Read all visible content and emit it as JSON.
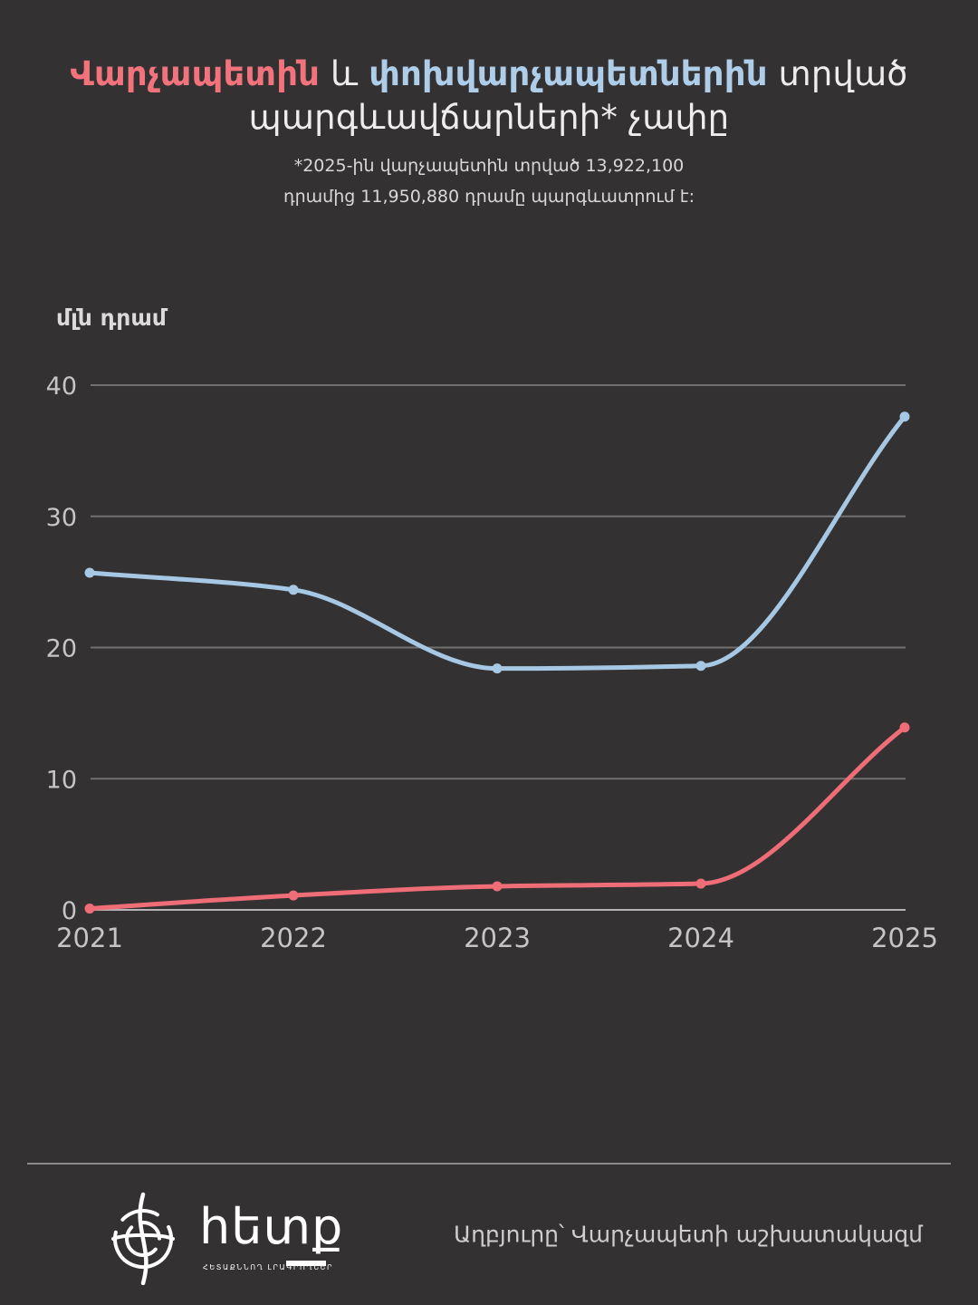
{
  "title": {
    "part_red": "Վարչապետին",
    "part_and": " և ",
    "part_blue": "փոխվարչապետներին",
    "part_tail": " տրված",
    "line2": "պարգևավճարների* չափը"
  },
  "subtitle": {
    "line1": "*2025-ին վարչապետին տրված 13,922,100",
    "line2": "դրամից 11,950,880 դրամը պարգևատրում է:"
  },
  "chart_data": {
    "type": "line",
    "title": "Վարչապետին և փոխվարչապետներին տրված պարգևավճարների չափը",
    "ylabel": "մլն դրամ",
    "xlabel": "",
    "x": [
      "2021",
      "2022",
      "2023",
      "2024",
      "2025"
    ],
    "series": [
      {
        "name": "Վարչապետին",
        "color": "#ef6d76",
        "values": [
          0.1,
          1.1,
          1.8,
          2.0,
          13.9
        ]
      },
      {
        "name": "փոխվարչապետներին",
        "color": "#a6c8e4",
        "values": [
          25.7,
          24.4,
          18.4,
          18.6,
          37.6
        ]
      }
    ],
    "ylim": [
      0,
      40
    ],
    "yticks": [
      0,
      10,
      20,
      30,
      40
    ],
    "grid": true,
    "legend_position": "none",
    "interpolation": "monotone"
  },
  "footer": {
    "logo_word": "հետք",
    "logo_tagline": "ՀԵՏԱՔՆՆՈՂ ԼՐԱԳՐՈՂՆԵՐ",
    "source": "Աղբյուրը՝ Վարչապետի աշխատակազմ"
  },
  "colors": {
    "background": "#333132",
    "pm_red": "#f2737c",
    "deputy_blue": "#aecde9",
    "grid_line": "#717171",
    "zero_line": "#b5b3b4",
    "tick_text": "#c6c4c5",
    "title_text": "#efeced",
    "subtitle_text": "#d9d7d8",
    "footer_text": "#cfcdce",
    "logo_white": "#ffffff"
  }
}
